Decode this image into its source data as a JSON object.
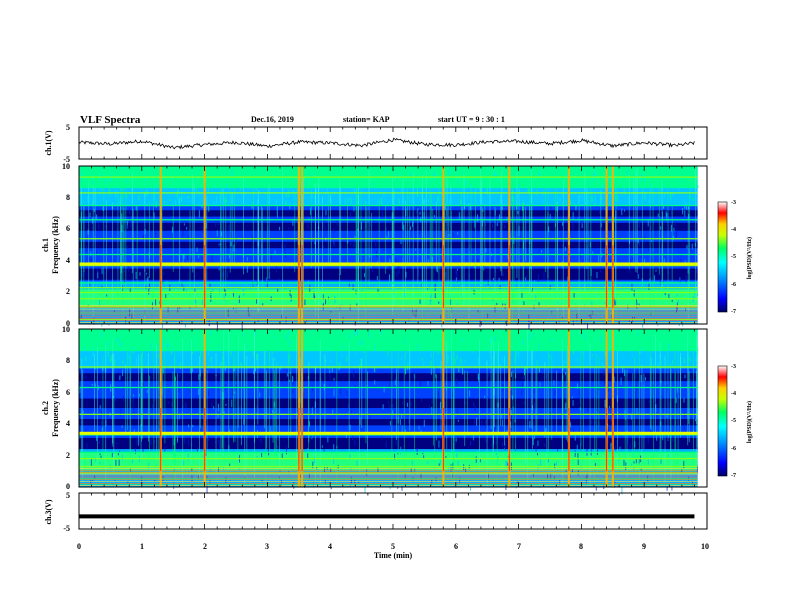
{
  "header": {
    "title": "VLF Spectra",
    "date": "Dec.16, 2019",
    "station": "station= KAP",
    "start": "start  UT =   9 : 30 : 1"
  },
  "colors": {
    "trace": "#000000",
    "colormap": [
      "#000066",
      "#0000ff",
      "#0090ff",
      "#00ffff",
      "#00ff60",
      "#c8ff00",
      "#ffd000",
      "#ff0000",
      "#ffffff"
    ]
  },
  "chart_data": [
    {
      "type": "line",
      "ylabel": "ch.1(V)",
      "ylim": [
        -5,
        5
      ],
      "yticks": [
        "5",
        "-5"
      ],
      "xlim": [
        0,
        10
      ],
      "trace_approx": [
        [
          0,
          0.2
        ],
        [
          0.5,
          -0.3
        ],
        [
          1,
          0.6
        ],
        [
          1.5,
          -1.5
        ],
        [
          2,
          -0.5
        ],
        [
          2.5,
          0.2
        ],
        [
          3,
          -1.0
        ],
        [
          3.5,
          0.3
        ],
        [
          4,
          0.0
        ],
        [
          4.5,
          -0.8
        ],
        [
          5,
          1.0
        ],
        [
          5.5,
          -0.4
        ],
        [
          6,
          -0.6
        ],
        [
          6.5,
          0.4
        ],
        [
          7,
          0.5
        ],
        [
          7.5,
          -0.2
        ],
        [
          8,
          0.8
        ],
        [
          8.5,
          -0.9
        ],
        [
          9,
          0.1
        ],
        [
          9.5,
          -0.8
        ],
        [
          9.8,
          0.0
        ]
      ]
    },
    {
      "type": "heatmap",
      "ylabel_line1": "ch.1",
      "ylabel_line2": "Frequency  (kHz)",
      "ylim": [
        0,
        10
      ],
      "yticks": [
        "0",
        "2",
        "4",
        "6",
        "8",
        "10"
      ],
      "xlim": [
        0,
        10
      ],
      "colorbar_label": "log(PSD)(V²/Hz)",
      "colorbar_ticks": [
        "-3",
        "-4",
        "-5",
        "-6",
        "-7"
      ],
      "colorbar_range": [
        -7,
        -3
      ],
      "dark_bands_khz": [
        [
          2.8,
          3.5
        ],
        [
          4.8,
          5.2
        ],
        [
          5.9,
          6.4
        ],
        [
          6.8,
          7.2
        ]
      ],
      "bright_lines_khz": [
        0.3,
        0.7,
        1.1,
        1.6,
        2.0,
        2.3,
        2.6,
        3.7,
        4.4,
        5.4,
        6.6,
        7.5,
        8.3,
        9.3
      ],
      "strong_line_khz": 3.8,
      "spike_times_min": [
        1.3,
        2.0,
        3.5,
        3.55,
        5.8,
        6.85,
        7.8,
        8.4,
        8.5
      ]
    },
    {
      "type": "heatmap",
      "ylabel_line1": "ch.2",
      "ylabel_line2": "Frequency  (kHz)",
      "ylim": [
        0,
        10
      ],
      "yticks": [
        "0",
        "2",
        "4",
        "6",
        "8",
        "10"
      ],
      "xlim": [
        0,
        10
      ],
      "colorbar_label": "log(PSD)(V²/Hz)",
      "colorbar_ticks": [
        "-3",
        "-4",
        "-5",
        "-6",
        "-7"
      ],
      "colorbar_range": [
        -7,
        -3
      ],
      "dark_bands_khz": [
        [
          2.4,
          3.1
        ],
        [
          3.9,
          4.3
        ],
        [
          5.0,
          5.6
        ],
        [
          6.7,
          7.2
        ]
      ],
      "bright_lines_khz": [
        0.2,
        0.5,
        0.9,
        1.3,
        1.8,
        2.2,
        3.3,
        4.6,
        6.3,
        7.6
      ],
      "strong_line_khz": 3.4,
      "spike_times_min": [
        1.3,
        2.0,
        3.5,
        3.55,
        5.8,
        6.85,
        7.8,
        8.4,
        8.5
      ]
    },
    {
      "type": "line",
      "ylabel": "ch.3(V)",
      "ylim": [
        -5,
        5
      ],
      "yticks": [
        "5",
        "-5"
      ],
      "xlim": [
        0,
        10
      ],
      "xlabel": "Time  (min)",
      "xticks": [
        "0",
        "1",
        "2",
        "3",
        "4",
        "5",
        "6",
        "7",
        "8",
        "9",
        "10"
      ],
      "trace_approx": [
        [
          0,
          -1.5
        ],
        [
          9.8,
          -1.5
        ]
      ]
    }
  ]
}
